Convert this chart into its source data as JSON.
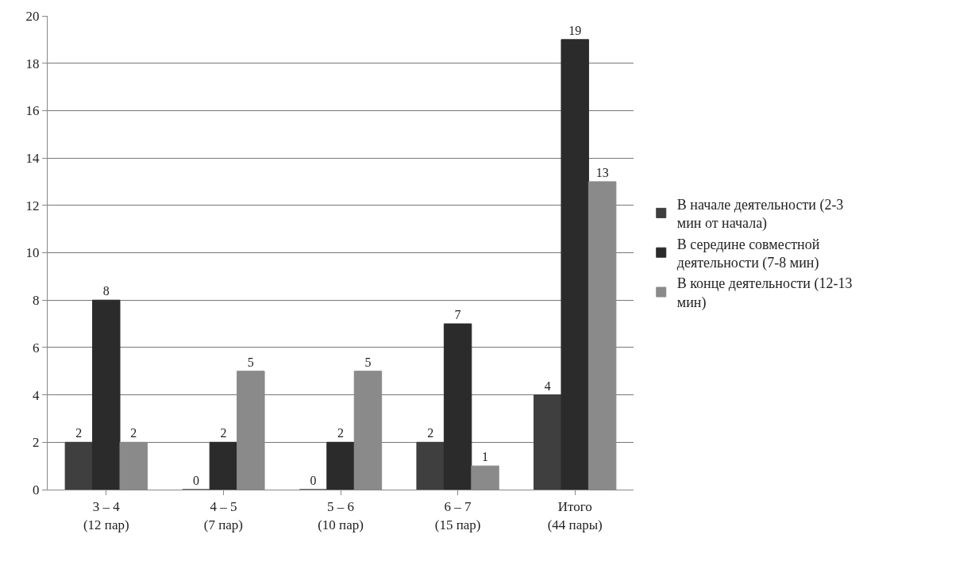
{
  "chart_data": {
    "type": "bar",
    "categories": [
      "3 – 4\n(12 пар)",
      "4 – 5\n(7 пар)",
      "5 – 6\n(10 пар)",
      "6 – 7\n(15 пар)",
      "Итого\n(44 пары)"
    ],
    "series": [
      {
        "name": "В начале деятельности (2-3 мин от начала)",
        "color": "#3f3f3f",
        "values": [
          2,
          0,
          0,
          2,
          4
        ]
      },
      {
        "name": "В середине совместной деятельности (7-8 мин)",
        "color": "#2b2b2b",
        "values": [
          8,
          2,
          2,
          7,
          19
        ]
      },
      {
        "name": "В конце деятельности (12-13 мин)",
        "color": "#8a8a8a",
        "values": [
          2,
          5,
          5,
          1,
          13
        ]
      }
    ],
    "ylim": [
      0,
      20
    ],
    "yticks": [
      0,
      2,
      4,
      6,
      8,
      10,
      12,
      14,
      16,
      18,
      20
    ],
    "grid": "y",
    "legend": "right",
    "data_labels": true
  }
}
